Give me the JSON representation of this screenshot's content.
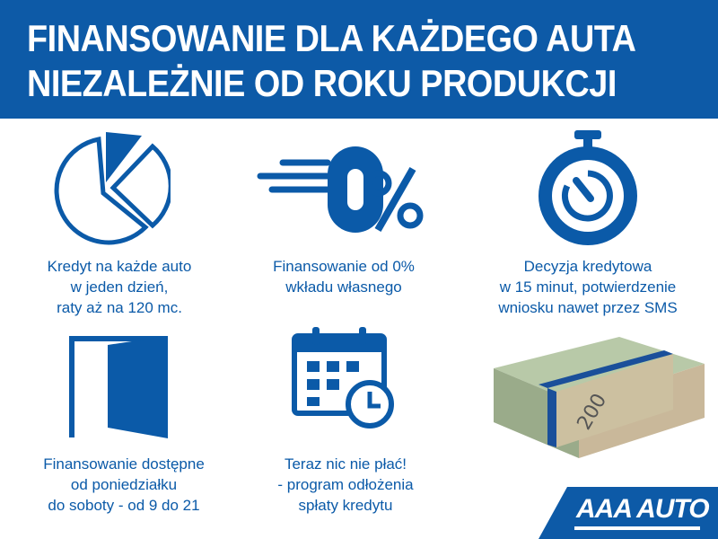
{
  "header": {
    "line1": "FINANSOWANIE DLA KAŻDEGO AUTA",
    "line2": "NIEZALEŻNIE OD ROKU PRODUKCJI"
  },
  "features": [
    {
      "icon": "pie-chart-icon",
      "lines": [
        "Kredyt na każde auto",
        "w jeden dzień,",
        "raty aż na 120 mc."
      ]
    },
    {
      "icon": "zero-percent-icon",
      "lines": [
        "Finansowanie od 0%",
        "wkładu własnego"
      ]
    },
    {
      "icon": "stopwatch-icon",
      "lines": [
        "Decyzja kredytowa",
        "w 15 minut, potwierdzenie",
        "wniosku nawet przez SMS"
      ]
    },
    {
      "icon": "door-icon",
      "lines": [
        "Finansowanie dostępne",
        "od poniedziałku",
        "do soboty - od 9 do 21"
      ]
    },
    {
      "icon": "calendar-clock-icon",
      "lines": [
        "Teraz nic nie płać!",
        "- program odłożenia",
        "spłaty kredytu"
      ]
    }
  ],
  "logo": "AAA AUTO",
  "colors": {
    "brand": "#0d5aa7",
    "background": "#ffffff"
  }
}
